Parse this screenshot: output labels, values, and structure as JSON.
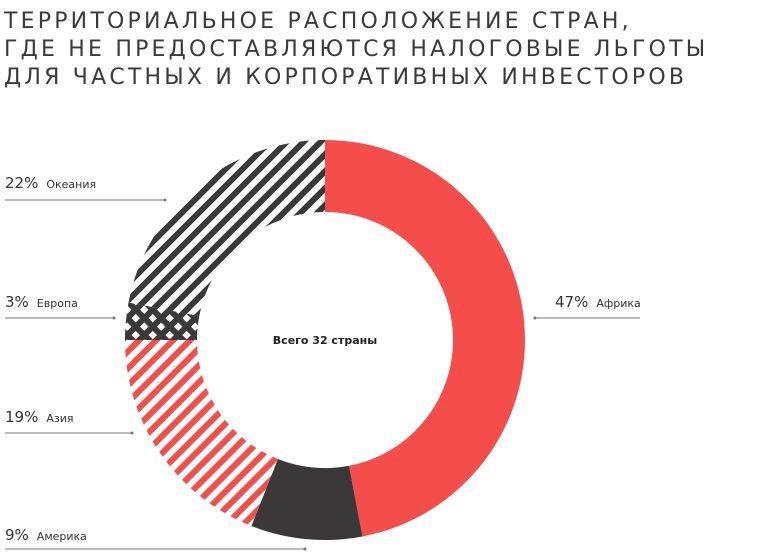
{
  "chart_data": {
    "type": "donut",
    "title": [
      "ТЕРРИТОРИАЛЬНОЕ РАСПОЛОЖЕНИЕ СТРАН,",
      "ГДЕ НЕ ПРЕДОСТАВЛЯЮТСЯ НАЛОГОВЫЕ ЛЬГОТЫ",
      "ДЛЯ ЧАСТНЫХ И КОРПОРАТИВНЫХ ИНВЕСТОРОВ"
    ],
    "center_label": "Всего 32 страны",
    "categories": [
      "Африка",
      "Америка",
      "Азия",
      "Европа",
      "Океания"
    ],
    "values": [
      47,
      9,
      19,
      3,
      22
    ],
    "value_labels": [
      "47%",
      "9%",
      "19%",
      "3%",
      "22%"
    ],
    "colors": [
      "#f44d4a",
      "#3a3839",
      "#f44d4a",
      "#3a3839",
      "#3a3839"
    ],
    "patterns": [
      "solid",
      "solid",
      "hatch",
      "crosshatch",
      "hatch"
    ]
  }
}
